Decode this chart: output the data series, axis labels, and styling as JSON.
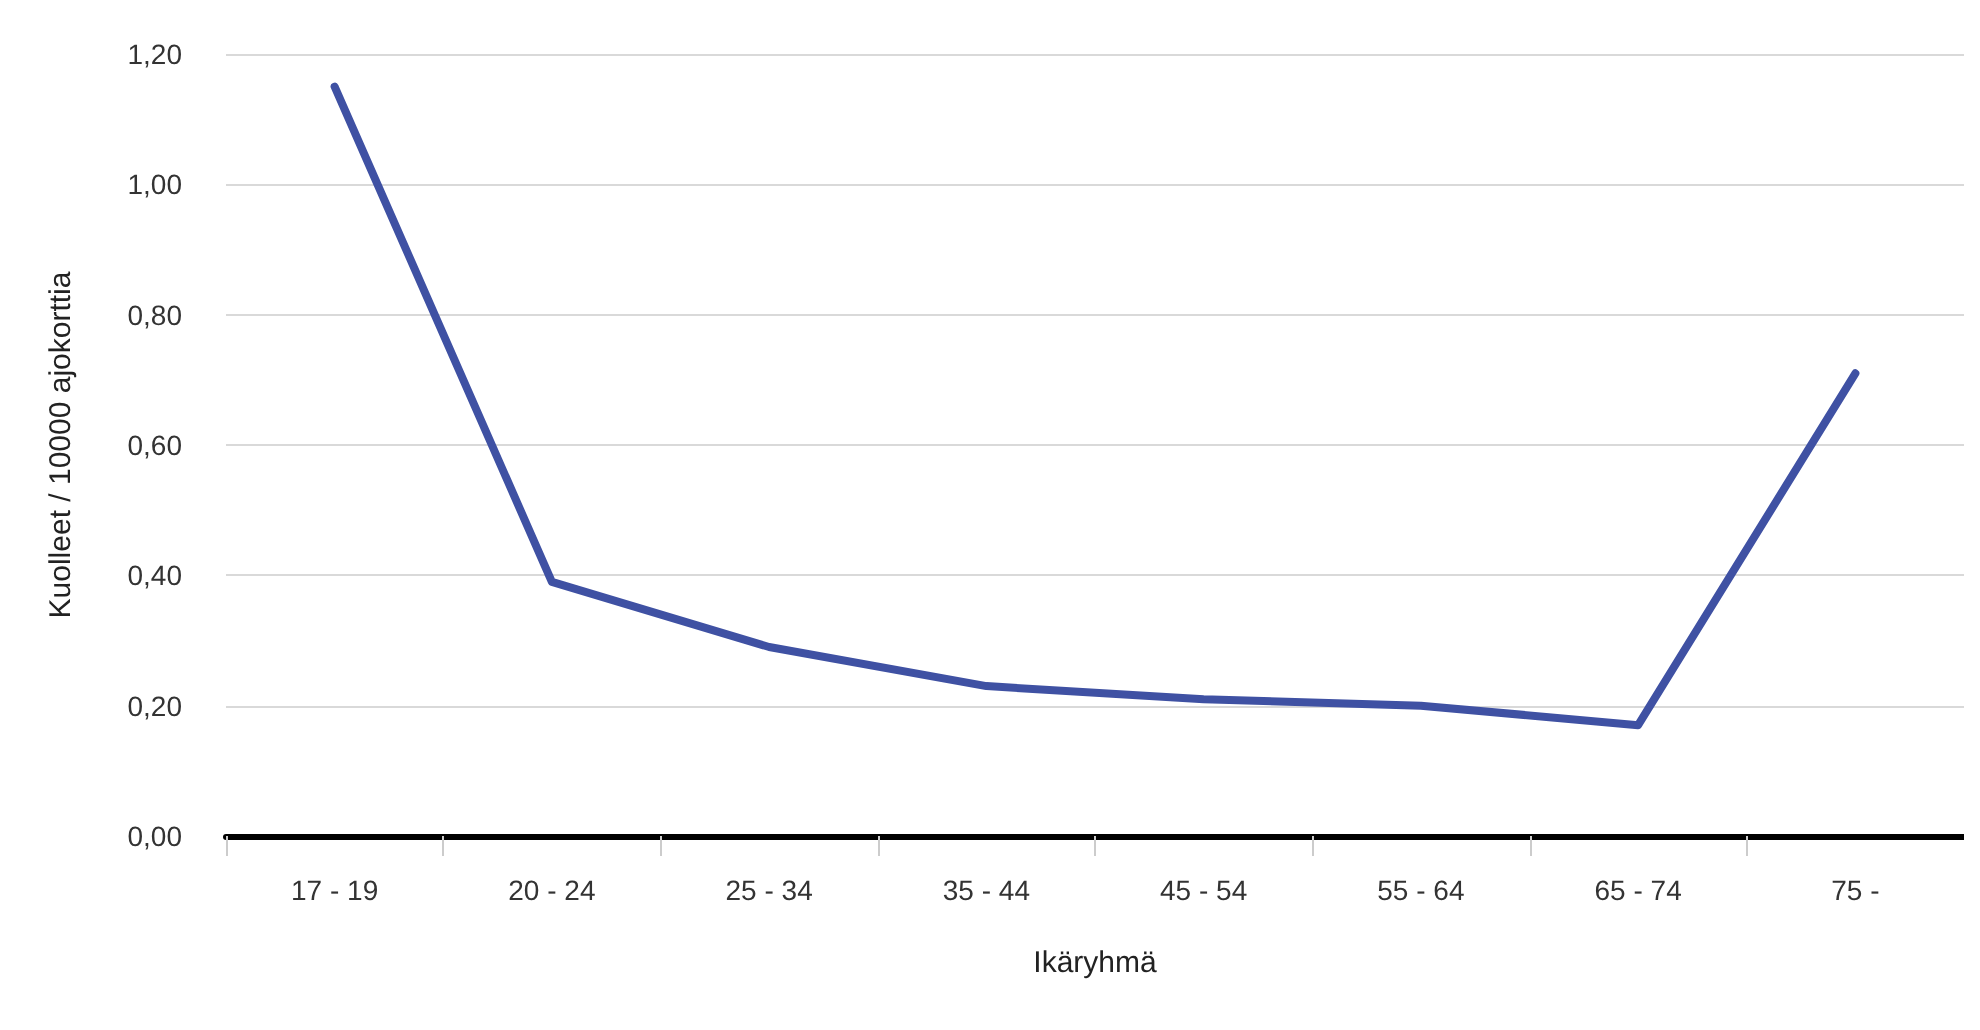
{
  "chart_data": {
    "type": "line",
    "xlabel": "Ikäryhmä",
    "ylabel": "Kuolleet / 10000 ajokorttia",
    "categories": [
      "17 - 19",
      "20 - 24",
      "25 - 34",
      "35 - 44",
      "45 - 54",
      "55 - 64",
      "65 - 74",
      "75 -"
    ],
    "series": [
      {
        "color": "#3f51a3",
        "values": [
          1.15,
          0.39,
          0.29,
          0.23,
          0.21,
          0.2,
          0.17,
          0.71
        ]
      }
    ],
    "ylim": [
      0,
      1.2
    ],
    "yticks": [
      {
        "value": 0,
        "label": "0,00"
      },
      {
        "value": 0.2,
        "label": "0,20"
      },
      {
        "value": 0.4,
        "label": "0,40"
      },
      {
        "value": 0.6,
        "label": "0,60"
      },
      {
        "value": 0.8,
        "label": "0,80"
      },
      {
        "value": 1,
        "label": "1,00"
      },
      {
        "value": 1.2,
        "label": "1,20"
      }
    ],
    "grid": "y",
    "marker": "none"
  }
}
